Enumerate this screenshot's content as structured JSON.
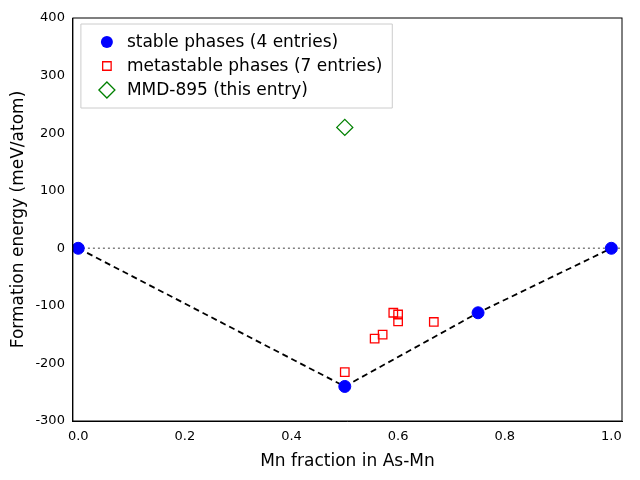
{
  "chart_data": {
    "type": "scatter",
    "x_label": "Mn fraction in As-Mn",
    "y_label": "Formation energy (meV/atom)",
    "xlim": [
      -0.01,
      1.02
    ],
    "xticks": [
      {
        "value": 0,
        "label": "0.0"
      },
      0.2,
      0.4,
      0.6,
      0.8,
      {
        "value": 1,
        "label": "1.0"
      }
    ],
    "ylim": [
      -300,
      400
    ],
    "yticks": [
      -300,
      -200,
      -100,
      0,
      100,
      200,
      300,
      400
    ],
    "grid": false,
    "legend": "upper left",
    "hline": {
      "y": 0,
      "line_style": "dotted"
    },
    "series": [
      {
        "name": "stable phases (4 entries)",
        "color": "#0000ff",
        "marker": "circle",
        "line_style": "dashed",
        "x": [
          0,
          0.5,
          0.75,
          1
        ],
        "values": [
          0,
          -240,
          -112,
          0
        ]
      },
      {
        "name": "metastable phases (7 entries)",
        "color": "#ff0000",
        "marker": "square_open",
        "x": [
          0.5,
          0.556,
          0.571,
          0.591,
          0.6,
          0.6,
          0.667
        ],
        "values": [
          -215,
          -157,
          -150,
          -112,
          -115,
          -127,
          -128
        ]
      },
      {
        "name": "MMD-895 (this entry)",
        "color": "#008000",
        "marker": "diamond_open",
        "x": [
          0.5
        ],
        "values": [
          210
        ]
      }
    ]
  }
}
